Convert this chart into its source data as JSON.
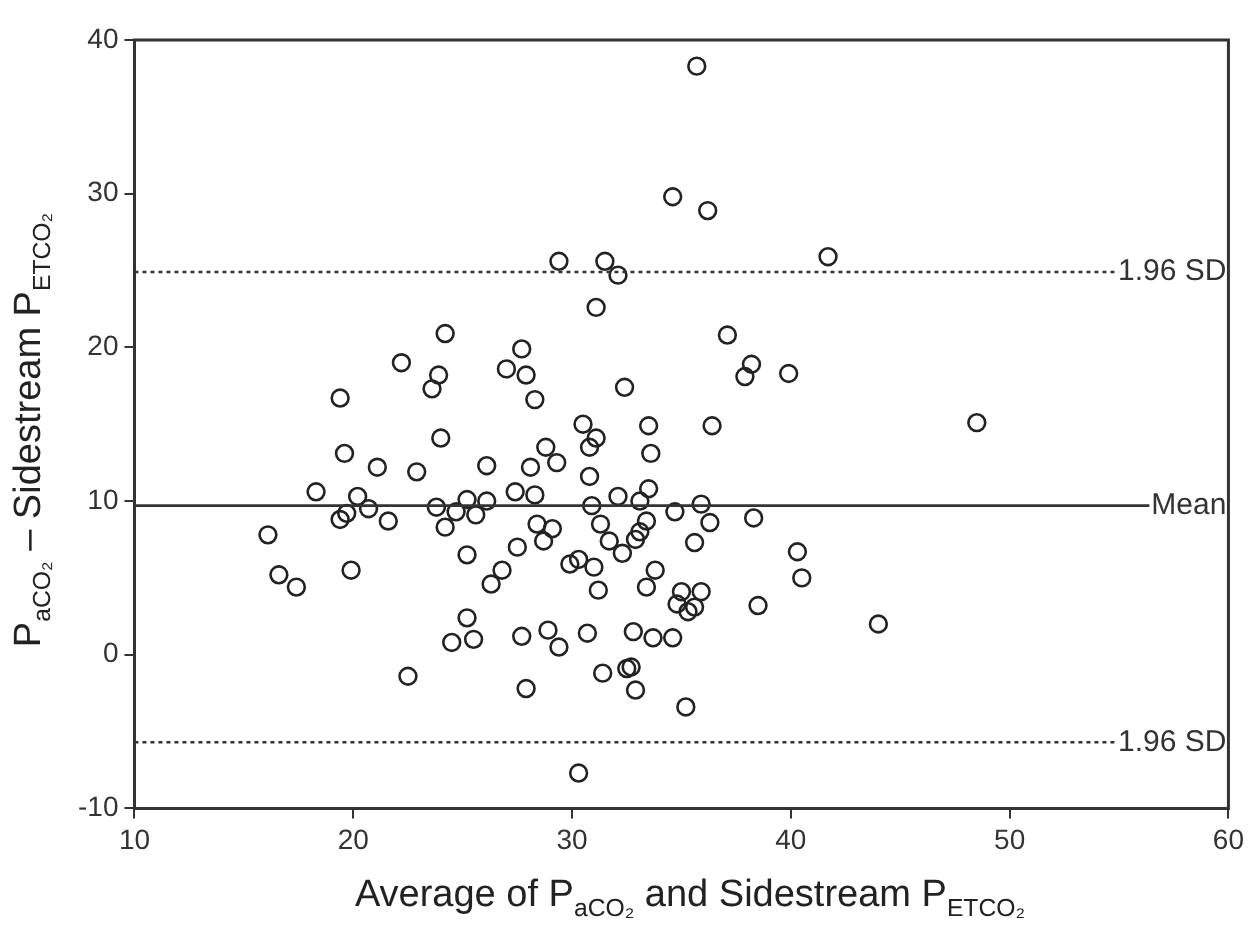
{
  "chart_data": {
    "type": "scatter",
    "xlabel": "Average of P$_{aCO₂}$ and Sidestream P$_{ETCO₂}$",
    "ylabel": "P$_{aCO₂}$ – Sidestream P$_{ETCO₂}$",
    "xlim": [
      10,
      60
    ],
    "xticks": [
      10,
      20,
      30,
      40,
      50,
      60
    ],
    "ylim": [
      -10,
      40
    ],
    "yticks": [
      -10,
      0,
      10,
      20,
      30,
      40
    ],
    "grid": false,
    "legend": false,
    "marker": "circle",
    "series": [
      {
        "color": "#222222",
        "x": [
          35.7,
          34.6,
          36.2,
          29.4,
          31.5,
          32.1,
          41.7,
          31.1,
          24.2,
          37.1,
          22.2,
          23.9,
          27.0,
          27.7,
          27.9,
          38.2,
          37.9,
          39.9,
          23.6,
          19.4,
          28.3,
          32.4,
          30.5,
          31.1,
          33.5,
          36.4,
          48.5,
          19.6,
          24.0,
          28.8,
          30.8,
          33.6,
          21.1,
          22.9,
          26.1,
          28.1,
          29.3,
          30.8,
          18.3,
          20.2,
          27.4,
          28.3,
          32.1,
          33.1,
          33.5,
          30.9,
          35.9,
          19.4,
          19.7,
          20.7,
          21.6,
          23.8,
          24.7,
          25.2,
          25.6,
          26.1,
          24.2,
          28.4,
          29.1,
          28.7,
          31.3,
          31.7,
          32.3,
          32.9,
          33.1,
          33.4,
          34.7,
          36.3,
          38.3,
          16.1,
          25.2,
          27.5,
          29.9,
          30.3,
          31.0,
          26.8,
          26.3,
          16.6,
          17.4,
          19.9,
          31.2,
          33.4,
          33.8,
          35.0,
          35.9,
          34.8,
          35.3,
          35.6,
          38.5,
          40.3,
          40.5,
          35.6,
          25.2,
          24.5,
          25.5,
          27.7,
          28.9,
          29.4,
          30.7,
          32.8,
          33.7,
          34.6,
          44.0,
          22.5,
          27.9,
          31.4,
          32.5,
          32.7,
          32.9,
          35.2,
          30.3
        ],
        "values": [
          38.3,
          29.8,
          28.9,
          25.6,
          25.6,
          24.7,
          25.9,
          22.6,
          20.9,
          20.8,
          19.0,
          18.2,
          18.6,
          19.9,
          18.2,
          18.9,
          18.1,
          18.3,
          17.3,
          16.7,
          16.6,
          17.4,
          15.0,
          14.1,
          14.9,
          14.9,
          15.1,
          13.1,
          14.1,
          13.5,
          13.5,
          13.1,
          12.2,
          11.9,
          12.3,
          12.2,
          12.5,
          11.6,
          10.6,
          10.3,
          10.6,
          10.4,
          10.3,
          10.0,
          10.8,
          9.7,
          9.8,
          8.8,
          9.2,
          9.5,
          8.7,
          9.6,
          9.3,
          10.1,
          9.1,
          10.0,
          8.3,
          8.5,
          8.2,
          7.4,
          8.5,
          7.4,
          6.6,
          7.5,
          8.0,
          8.7,
          9.3,
          8.6,
          8.9,
          7.8,
          6.5,
          7.0,
          5.9,
          6.2,
          5.7,
          5.5,
          4.6,
          5.2,
          4.4,
          5.5,
          4.2,
          4.4,
          5.5,
          4.1,
          4.1,
          3.3,
          2.8,
          3.1,
          3.2,
          6.7,
          5.0,
          7.3,
          2.4,
          0.8,
          1.0,
          1.2,
          1.6,
          0.5,
          1.4,
          1.5,
          1.1,
          1.1,
          2.0,
          -1.4,
          -2.2,
          -1.2,
          -0.9,
          -0.8,
          -2.3,
          -3.4,
          -7.7
        ]
      }
    ],
    "ref_lines": [
      {
        "axis": "y",
        "value": 24.9,
        "label": "1.96 SD",
        "line_style": "dotted"
      },
      {
        "axis": "y",
        "value": 9.7,
        "label": "Mean",
        "line_style": "solid"
      },
      {
        "axis": "y",
        "value": -5.7,
        "label": "1.96 SD",
        "line_style": "dotted"
      }
    ]
  }
}
